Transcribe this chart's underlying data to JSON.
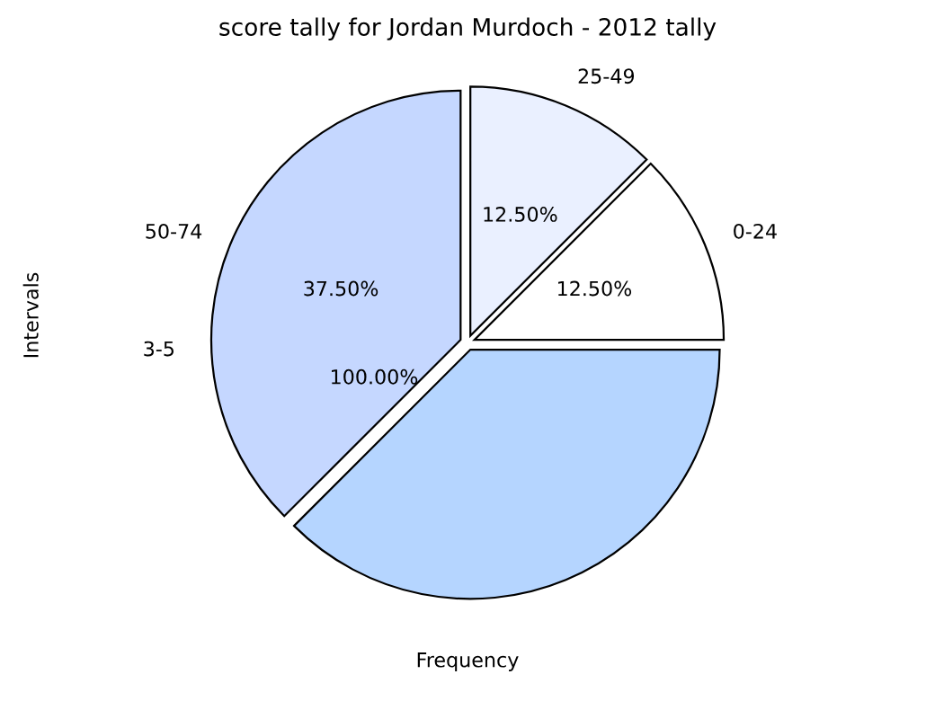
{
  "chart_data": {
    "type": "pie",
    "title": "score tally for Jordan Murdoch - 2012 tally",
    "xlabel": "Frequency",
    "ylabel": "Intervals",
    "categories": [
      "25-49",
      "0-24",
      null,
      "50-74"
    ],
    "values": [
      12.5,
      12.5,
      37.5,
      37.5
    ],
    "colors": [
      "#eaf0ff",
      "#ffffff",
      "#b5d5ff",
      "#c5d7ff"
    ],
    "value_labels": [
      "12.50%",
      "12.50%",
      null,
      "37.50%"
    ],
    "annotations": [
      "3-5",
      "100.00%"
    ]
  }
}
